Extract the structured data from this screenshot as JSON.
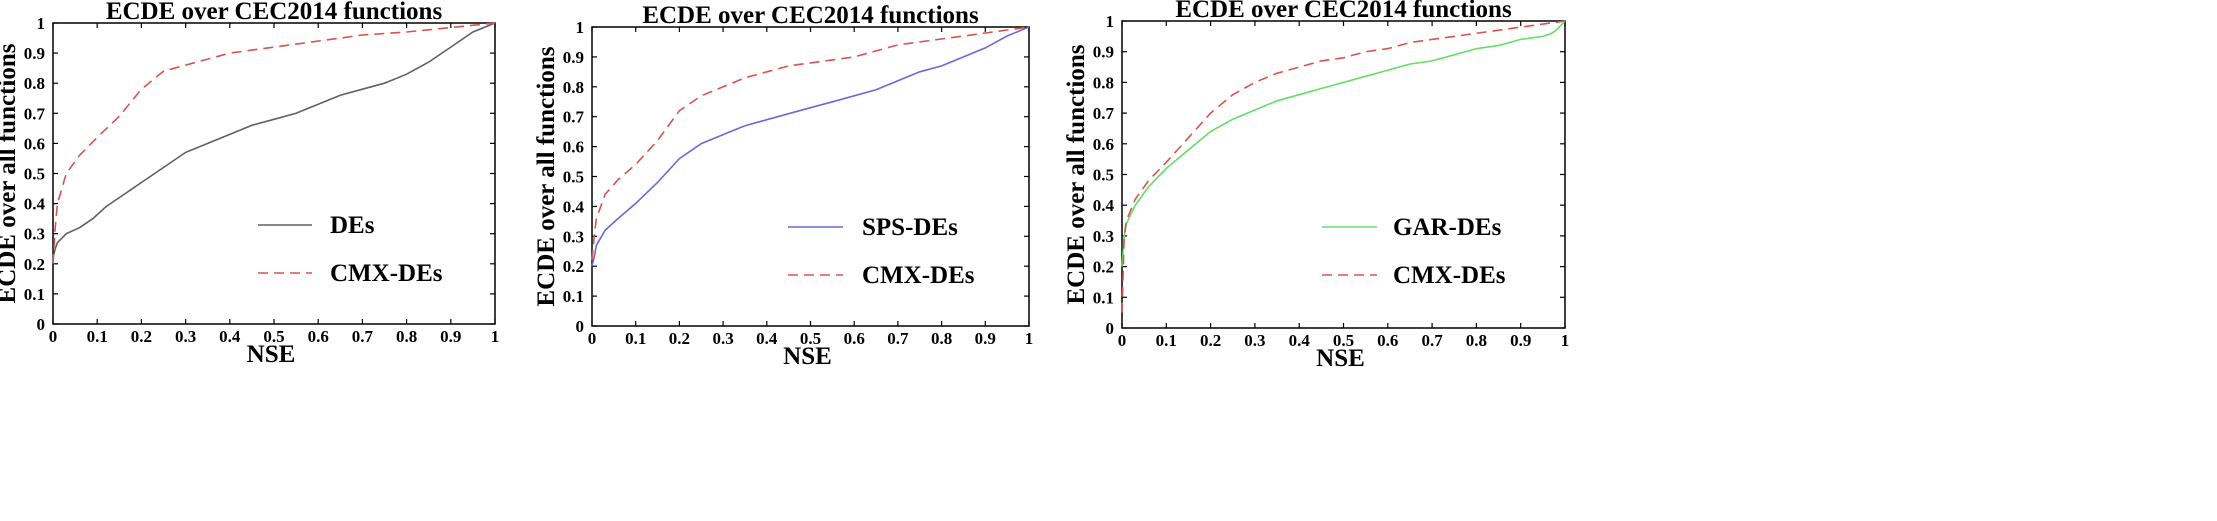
{
  "chart_data": [
    {
      "type": "line",
      "title": "ECDE over CEC2014 functions",
      "xlabel": "NSE",
      "ylabel": "ECDE over all functions",
      "xlim": [
        0,
        1
      ],
      "ylim": [
        0,
        1
      ],
      "xticks": [
        "0",
        "0.1",
        "0.2",
        "0.3",
        "0.4",
        "0.5",
        "0.6",
        "0.7",
        "0.8",
        "0.9",
        "1"
      ],
      "yticks": [
        "0",
        "0.1",
        "0.2",
        "0.3",
        "0.4",
        "0.5",
        "0.6",
        "0.7",
        "0.8",
        "0.9",
        "1"
      ],
      "legend_position": "center-right",
      "series": [
        {
          "name": "DEs",
          "color": "#606060",
          "dash": "solid",
          "x": [
            0,
            0.005,
            0.01,
            0.03,
            0.06,
            0.09,
            0.12,
            0.16,
            0.2,
            0.25,
            0.3,
            0.35,
            0.4,
            0.45,
            0.5,
            0.55,
            0.6,
            0.65,
            0.7,
            0.75,
            0.8,
            0.85,
            0.9,
            0.95,
            1.0
          ],
          "y": [
            0.22,
            0.25,
            0.27,
            0.3,
            0.32,
            0.35,
            0.39,
            0.43,
            0.47,
            0.52,
            0.57,
            0.6,
            0.63,
            0.66,
            0.68,
            0.7,
            0.73,
            0.76,
            0.78,
            0.8,
            0.83,
            0.87,
            0.92,
            0.97,
            1.0
          ]
        },
        {
          "name": "CMX-DEs",
          "color": "#d9534f",
          "dash": "dashed",
          "x": [
            0,
            0.005,
            0.01,
            0.03,
            0.06,
            0.1,
            0.15,
            0.2,
            0.25,
            0.3,
            0.35,
            0.4,
            0.45,
            0.5,
            0.55,
            0.6,
            0.65,
            0.7,
            0.8,
            0.9,
            1.0
          ],
          "y": [
            0.2,
            0.32,
            0.4,
            0.5,
            0.56,
            0.62,
            0.69,
            0.78,
            0.84,
            0.86,
            0.88,
            0.9,
            0.91,
            0.92,
            0.93,
            0.94,
            0.95,
            0.96,
            0.97,
            0.985,
            1.0
          ]
        }
      ]
    },
    {
      "type": "line",
      "title": "ECDE over CEC2014 functions",
      "xlabel": "NSE",
      "ylabel": "ECDE over all functions",
      "xlim": [
        0,
        1
      ],
      "ylim": [
        0,
        1
      ],
      "xticks": [
        "0",
        "0.1",
        "0.2",
        "0.3",
        "0.4",
        "0.5",
        "0.6",
        "0.7",
        "0.8",
        "0.9",
        "1"
      ],
      "yticks": [
        "0",
        "0.1",
        "0.2",
        "0.3",
        "0.4",
        "0.5",
        "0.6",
        "0.7",
        "0.8",
        "0.9",
        "1"
      ],
      "legend_position": "center-right",
      "series": [
        {
          "name": "SPS-DEs",
          "color": "#6a6ad8",
          "dash": "solid",
          "x": [
            0,
            0.005,
            0.01,
            0.03,
            0.06,
            0.1,
            0.15,
            0.2,
            0.25,
            0.3,
            0.35,
            0.4,
            0.45,
            0.5,
            0.55,
            0.6,
            0.65,
            0.7,
            0.75,
            0.8,
            0.85,
            0.9,
            0.95,
            1.0
          ],
          "y": [
            0.2,
            0.23,
            0.27,
            0.32,
            0.36,
            0.41,
            0.48,
            0.56,
            0.61,
            0.64,
            0.67,
            0.69,
            0.71,
            0.73,
            0.75,
            0.77,
            0.79,
            0.82,
            0.85,
            0.87,
            0.9,
            0.93,
            0.97,
            1.0
          ]
        },
        {
          "name": "CMX-DEs",
          "color": "#d9534f",
          "dash": "dashed",
          "x": [
            0,
            0.005,
            0.01,
            0.03,
            0.06,
            0.1,
            0.15,
            0.2,
            0.25,
            0.3,
            0.35,
            0.4,
            0.45,
            0.5,
            0.55,
            0.6,
            0.65,
            0.7,
            0.75,
            0.8,
            0.85,
            0.9,
            0.95,
            1.0
          ],
          "y": [
            0.22,
            0.3,
            0.36,
            0.44,
            0.49,
            0.54,
            0.62,
            0.72,
            0.77,
            0.8,
            0.83,
            0.85,
            0.87,
            0.88,
            0.89,
            0.9,
            0.92,
            0.94,
            0.95,
            0.96,
            0.97,
            0.98,
            0.99,
            1.0
          ]
        }
      ]
    },
    {
      "type": "line",
      "title": "ECDE over CEC2014 functions",
      "xlabel": "NSE",
      "ylabel": "ECDE over all functions",
      "xlim": [
        0,
        1
      ],
      "ylim": [
        0,
        1
      ],
      "xticks": [
        "0",
        "0.1",
        "0.2",
        "0.3",
        "0.4",
        "0.5",
        "0.6",
        "0.7",
        "0.8",
        "0.9",
        "1"
      ],
      "yticks": [
        "0",
        "0.1",
        "0.2",
        "0.3",
        "0.4",
        "0.5",
        "0.6",
        "0.7",
        "0.8",
        "0.9",
        "1"
      ],
      "legend_position": "center-right",
      "series": [
        {
          "name": "GAR-DEs",
          "color": "#66dd66",
          "dash": "solid",
          "x": [
            0,
            0.005,
            0.01,
            0.03,
            0.06,
            0.1,
            0.15,
            0.2,
            0.25,
            0.3,
            0.35,
            0.4,
            0.45,
            0.5,
            0.55,
            0.6,
            0.65,
            0.7,
            0.75,
            0.8,
            0.85,
            0.9,
            0.95,
            0.97,
            0.98,
            1.0
          ],
          "y": [
            0.2,
            0.3,
            0.34,
            0.4,
            0.46,
            0.52,
            0.58,
            0.64,
            0.68,
            0.71,
            0.74,
            0.76,
            0.78,
            0.8,
            0.82,
            0.84,
            0.86,
            0.87,
            0.89,
            0.91,
            0.92,
            0.94,
            0.95,
            0.96,
            0.97,
            1.0
          ]
        },
        {
          "name": "CMX-DEs",
          "color": "#d9534f",
          "dash": "dashed",
          "x": [
            0,
            0.005,
            0.01,
            0.03,
            0.06,
            0.1,
            0.15,
            0.2,
            0.25,
            0.3,
            0.35,
            0.4,
            0.45,
            0.5,
            0.55,
            0.6,
            0.65,
            0.7,
            0.75,
            0.8,
            0.85,
            0.9,
            0.95,
            1.0
          ],
          "y": [
            0.05,
            0.3,
            0.35,
            0.42,
            0.48,
            0.54,
            0.62,
            0.7,
            0.76,
            0.8,
            0.83,
            0.85,
            0.87,
            0.88,
            0.9,
            0.91,
            0.93,
            0.94,
            0.95,
            0.96,
            0.97,
            0.98,
            0.99,
            1.0
          ]
        }
      ]
    }
  ]
}
